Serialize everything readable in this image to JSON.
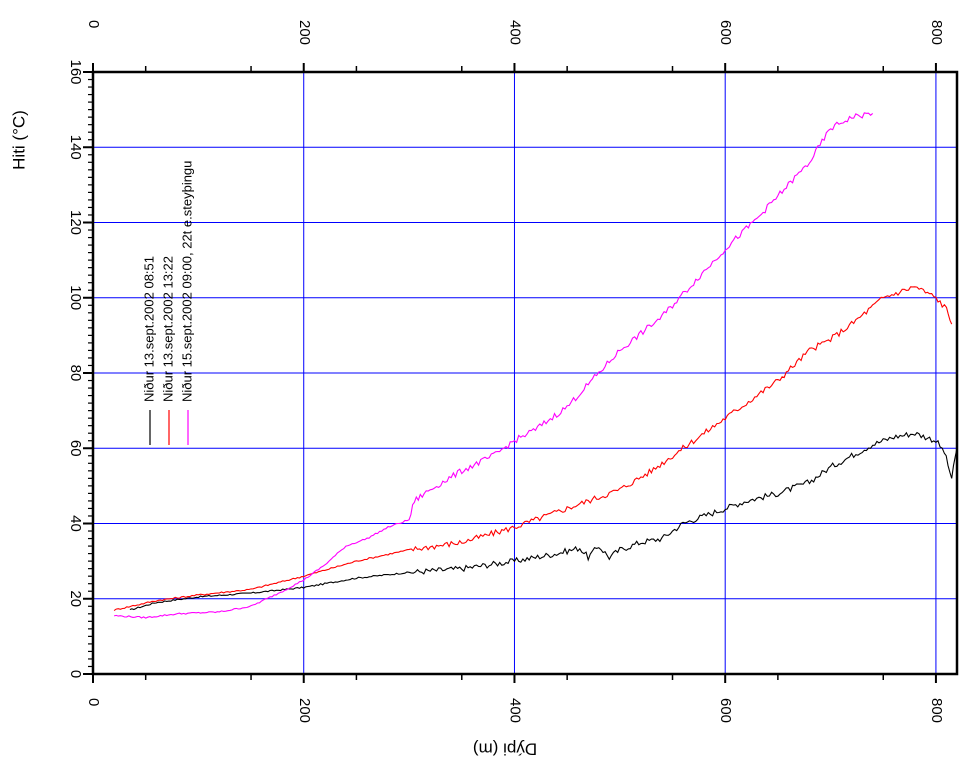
{
  "chart_data": {
    "type": "line",
    "orientation": "rotated-90",
    "xlabel": "Dýpi (m)",
    "ylabel": "Hiti (°C)",
    "x_ticks": [
      "0",
      "200",
      "400",
      "600",
      "800"
    ],
    "y_ticks": [
      "0",
      "20",
      "40",
      "60",
      "80",
      "100",
      "120",
      "140",
      "160"
    ],
    "xlim": [
      0,
      820
    ],
    "ylim": [
      0,
      160
    ],
    "grid": true,
    "grid_color": "#0000ff",
    "legend_placement": "upper-left (rotated)",
    "series": [
      {
        "name": "Niður 13.sept.2002 08:51",
        "color": "#000000",
        "x": [
          35,
          60,
          100,
          150,
          200,
          250,
          300,
          350,
          400,
          440,
          462,
          470,
          480,
          490,
          500,
          520,
          540,
          560,
          580,
          600,
          620,
          650,
          680,
          700,
          720,
          740,
          760,
          780,
          800,
          808,
          815,
          820
        ],
        "y": [
          17,
          19,
          20.5,
          21.5,
          23,
          25.5,
          27,
          28,
          30,
          32,
          33.5,
          31,
          34,
          31,
          33,
          35,
          36,
          40,
          42,
          44,
          46,
          48,
          51,
          55,
          58,
          61,
          63,
          64,
          62,
          59,
          52,
          60
        ]
      },
      {
        "name": "Niður 13.sept.2002 13:22",
        "color": "#ff0000",
        "x": [
          20,
          60,
          100,
          150,
          200,
          250,
          300,
          350,
          400,
          450,
          500,
          530,
          560,
          580,
          600,
          620,
          650,
          680,
          700,
          720,
          750,
          780,
          800,
          810,
          815
        ],
        "y": [
          17,
          19.5,
          21,
          22.5,
          26,
          30,
          33,
          35,
          39,
          44,
          49,
          54,
          60,
          64,
          68,
          72,
          78,
          86,
          89,
          93,
          100,
          103,
          100,
          97,
          93
        ]
      },
      {
        "name": "Niður 15.sept.2002 09:00, 22t e.steyþingu",
        "color": "#ff00ff",
        "x": [
          20,
          50,
          80,
          120,
          150,
          180,
          200,
          220,
          240,
          260,
          280,
          300,
          305,
          320,
          350,
          380,
          400,
          420,
          450,
          480,
          500,
          540,
          570,
          600,
          630,
          650,
          680,
          700,
          720,
          740
        ],
        "y": [
          15.5,
          15,
          16,
          16.5,
          18,
          22,
          25,
          29,
          34,
          36,
          39,
          41,
          46,
          49,
          54,
          58,
          62,
          65,
          71,
          80,
          86,
          95,
          104,
          113,
          121,
          127,
          136,
          145,
          148,
          149
        ]
      }
    ]
  }
}
